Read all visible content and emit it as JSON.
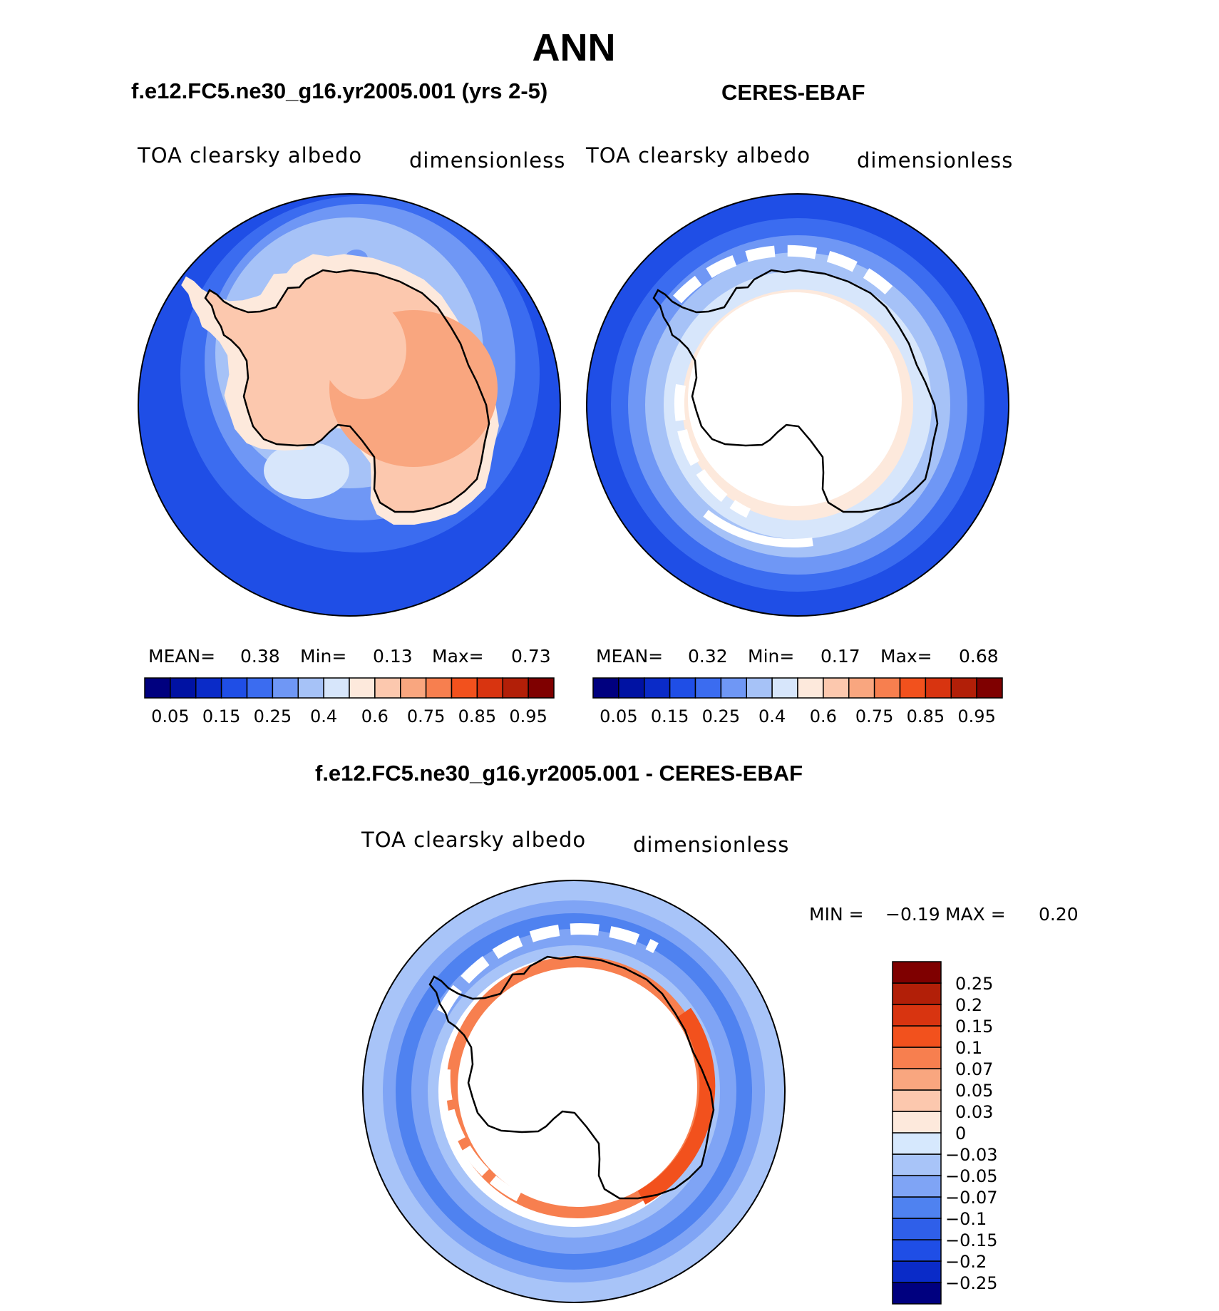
{
  "title": "ANN",
  "panels": [
    {
      "id": "model",
      "case_title": "f.e12.FC5.ne30_g16.yr2005.001 (yrs 2-5)",
      "variable": "TOA clearsky albedo",
      "units": "dimensionless",
      "stats": {
        "mean_label": "MEAN=",
        "mean": "0.38",
        "min_label": "Min=",
        "min": "0.13",
        "max_label": "Max=",
        "max": "0.73"
      }
    },
    {
      "id": "obs",
      "case_title": "CERES-EBAF",
      "variable": "TOA clearsky albedo",
      "units": "dimensionless",
      "stats": {
        "mean_label": "MEAN=",
        "mean": "0.32",
        "min_label": "Min=",
        "min": "0.17",
        "max_label": "Max=",
        "max": "0.68"
      }
    },
    {
      "id": "diff",
      "case_title": "f.e12.FC5.ne30_g16.yr2005.001 - CERES-EBAF",
      "variable": "TOA clearsky albedo",
      "units": "dimensionless",
      "stats": {
        "min_label": "MIN =",
        "min": "−0.19",
        "max_label": "MAX =",
        "max": "0.20"
      }
    }
  ],
  "colorbar_abs": {
    "colors": [
      "#00007f",
      "#0012a3",
      "#0a2bc8",
      "#1f4ee6",
      "#3b6cf0",
      "#6f97f5",
      "#a6c2f7",
      "#d7e6fb",
      "#fde9dc",
      "#fcc8ae",
      "#f9a67f",
      "#f77f4f",
      "#f2511d",
      "#d83410",
      "#b21f08",
      "#7f0000"
    ],
    "tick_labels": [
      "0.05",
      "0.15",
      "0.25",
      "0.4",
      "0.6",
      "0.75",
      "0.85",
      "0.95"
    ]
  },
  "colorbar_diff": {
    "colors": [
      "#00007f",
      "#0a2bc8",
      "#1f4ee6",
      "#2f5fe9",
      "#4f82f0",
      "#7fa4f5",
      "#a8c4f8",
      "#d6e8fd",
      "#fde9dc",
      "#fcc8ae",
      "#f9a67f",
      "#f77f4f",
      "#f2511d",
      "#d83410",
      "#b21f08",
      "#7f0000"
    ],
    "tick_labels": [
      "0.25",
      "0.2",
      "0.15",
      "0.1",
      "0.07",
      "0.05",
      "0.03",
      "0",
      "−0.03",
      "−0.05",
      "−0.07",
      "−0.1",
      "−0.15",
      "−0.2",
      "−0.25"
    ]
  },
  "map_colors": {
    "ocean_deep": "#1f4ee6",
    "ocean_mid": "#3b6cf0",
    "ocean_light": "#6f97f5",
    "ice_pale": "#a6c2f7",
    "ice_lighter": "#d7e6fb",
    "land_peach": "#fcc8ae",
    "land_peach_dark": "#f9a67f",
    "land_pale": "#fde9dc",
    "diff_outer": "#a8c4f8",
    "diff_mid": "#4f82f0",
    "diff_red": "#f2511d",
    "diff_orange": "#f77f4f"
  }
}
